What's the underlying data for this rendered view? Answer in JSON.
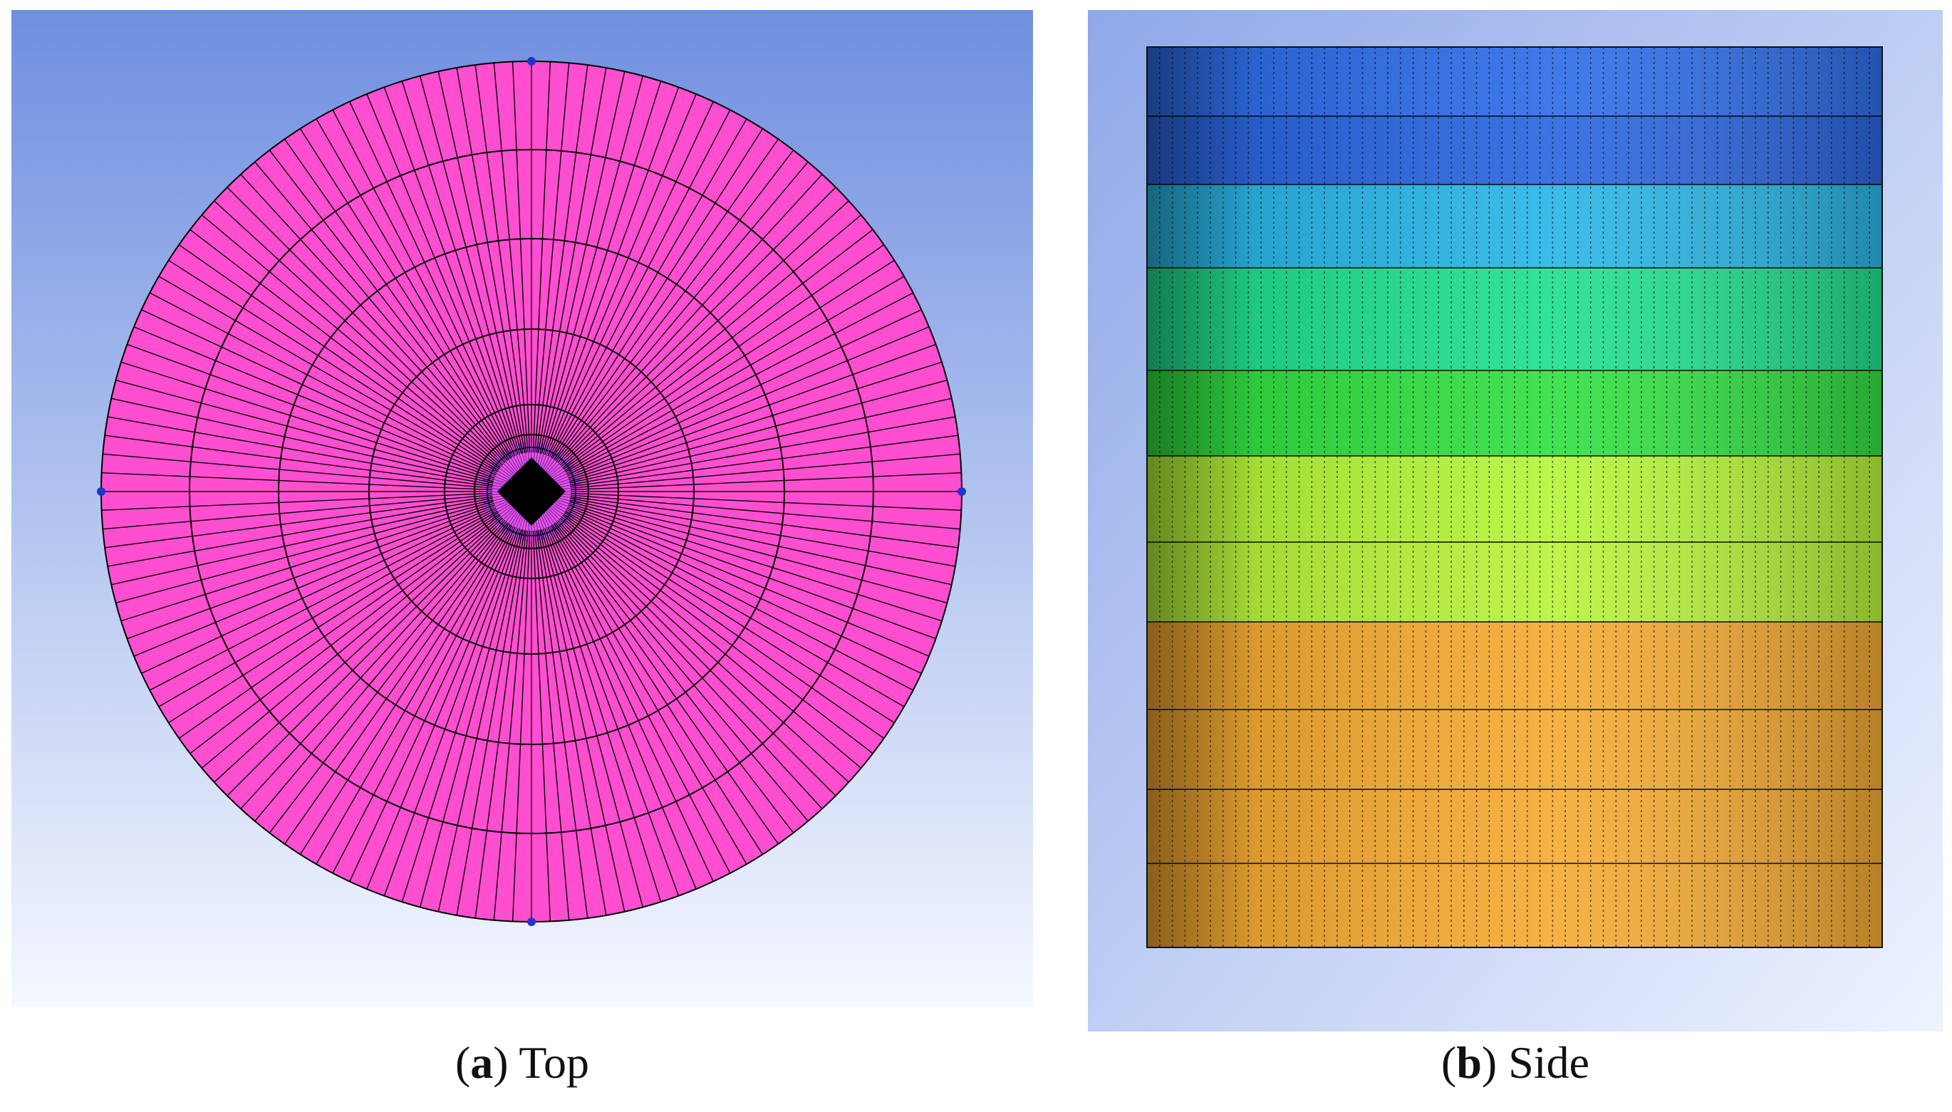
{
  "panels": [
    {
      "letter": "a",
      "caption": "Top",
      "view": "top",
      "colors": {
        "background_top": "#6f8fe0",
        "background_bottom": "#f5f8ff",
        "fill": "#ff4fd0",
        "lines": "#000000",
        "marker": "#2233cc"
      }
    },
    {
      "letter": "b",
      "caption": "Side",
      "view": "side",
      "colors": {
        "background_top": "#8fa8e8",
        "background_bottom": "#eef3ff",
        "layers": [
          "#2f6ee8",
          "#2c66e0",
          "#2bb6e6",
          "#22e08e",
          "#33e043",
          "#b6f53a",
          "#b8f33c",
          "#f5ab34",
          "#f5ab34",
          "#f5ab34",
          "#f5ab34"
        ]
      }
    }
  ]
}
